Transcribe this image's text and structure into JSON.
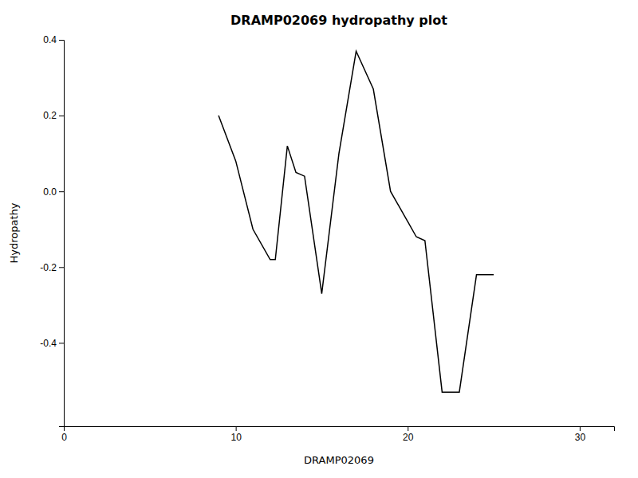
{
  "chart_data": {
    "type": "line",
    "title": "DRAMP02069 hydropathy plot",
    "xlabel": "DRAMP02069",
    "ylabel": "Hydropathy",
    "x": [
      9,
      10,
      11,
      12,
      12.3,
      13,
      13.5,
      14,
      15,
      16,
      17,
      18,
      19,
      19.5,
      20,
      20.5,
      21,
      22,
      22.5,
      23,
      24,
      25
    ],
    "values": [
      0.2,
      0.08,
      -0.1,
      -0.18,
      -0.18,
      0.12,
      0.05,
      0.04,
      -0.27,
      0.1,
      0.37,
      0.27,
      0.0,
      -0.04,
      -0.08,
      -0.12,
      -0.13,
      -0.53,
      -0.53,
      -0.53,
      -0.22,
      -0.22
    ],
    "color": "#000000",
    "xlim": [
      0,
      32
    ],
    "ylim": [
      -0.62,
      0.4
    ],
    "xticks": [
      0,
      10,
      20,
      30
    ],
    "yticks": [
      -0.4,
      -0.2,
      {
        "value": 0.0,
        "label": "0.0"
      },
      0.2,
      0.4
    ],
    "grid": false
  }
}
